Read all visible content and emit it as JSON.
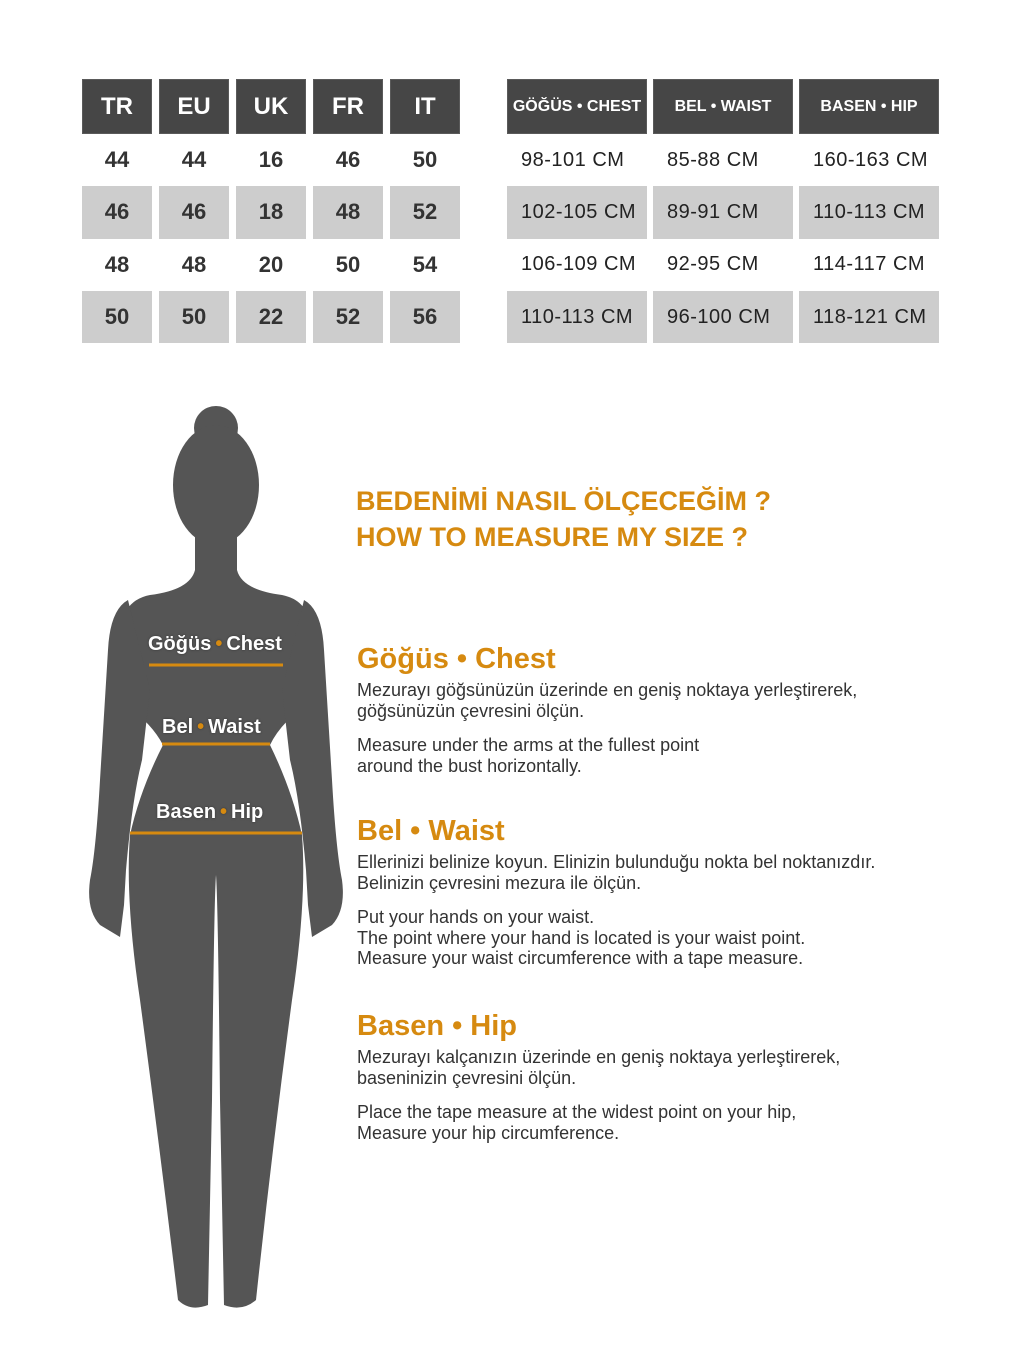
{
  "size_table": {
    "headers": [
      "TR",
      "EU",
      "UK",
      "FR",
      "IT"
    ],
    "rows": [
      [
        "44",
        "44",
        "16",
        "46",
        "50"
      ],
      [
        "46",
        "46",
        "18",
        "48",
        "52"
      ],
      [
        "48",
        "48",
        "20",
        "50",
        "54"
      ],
      [
        "50",
        "50",
        "22",
        "52",
        "56"
      ]
    ]
  },
  "measure_table": {
    "headers": [
      "GÖĞÜS • CHEST",
      "BEL • WAIST",
      "BASEN • HIP"
    ],
    "rows": [
      [
        "98-101 CM",
        "85-88 CM",
        "160-163 CM"
      ],
      [
        "102-105 CM",
        "89-91 CM",
        "110-113 CM"
      ],
      [
        "106-109 CM",
        "92-95 CM",
        "114-117 CM"
      ],
      [
        "110-113 CM",
        "96-100 CM",
        "118-121 CM"
      ]
    ]
  },
  "figure": {
    "chest": [
      "Göğüs",
      "Chest"
    ],
    "waist": [
      "Bel",
      "Waist"
    ],
    "hip": [
      "Basen",
      "Hip"
    ]
  },
  "title": {
    "tr": "BEDENİMİ NASIL ÖLÇECEĞİM ?",
    "en": "HOW TO MEASURE MY SIZE ?"
  },
  "sections": [
    {
      "heading": "Göğüs • Chest",
      "tr": "Mezurayı göğsünüzün üzerinde en geniş noktaya yerleştirerek,\ngöğsünüzün çevresini ölçün.",
      "en": "Measure under the arms at the fullest point\naround the bust horizontally."
    },
    {
      "heading": "Bel • Waist",
      "tr": "Ellerinizi belinize koyun. Elinizin bulunduğu nokta bel noktanızdır.\nBelinizin çevresini mezura ile ölçün.",
      "en": "Put your hands on your waist.\nThe point where your hand is located is your waist point.\nMeasure your waist circumference with a tape measure."
    },
    {
      "heading": "Basen • Hip",
      "tr": "Mezurayı kalçanızın üzerinde en geniş noktaya yerleştirerek,\nbaseninizin çevresini ölçün.",
      "en": "Place the tape measure at the widest point on your hip,\nMeasure your hip circumference."
    }
  ],
  "colors": {
    "accent": "#d68a10",
    "header": "#464646",
    "stripe": "#cdcdcd",
    "silhouette": "#555555"
  }
}
